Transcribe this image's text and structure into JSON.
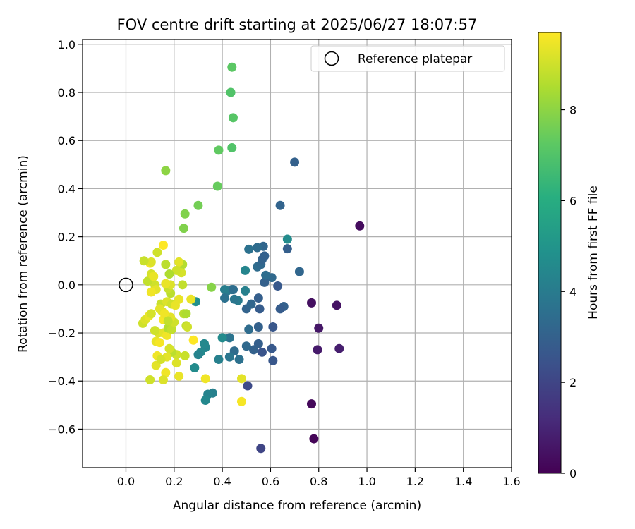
{
  "chart_data": {
    "type": "scatter",
    "title": "FOV centre drift starting at 2025/06/27 18:07:57",
    "xlabel": "Angular distance from reference (arcmin)",
    "ylabel": "Rotation from reference (arcmin)",
    "xlim": [
      -0.18,
      1.6
    ],
    "ylim": [
      -0.76,
      1.02
    ],
    "xticks": [
      0.0,
      0.2,
      0.4,
      0.6,
      0.8,
      1.0,
      1.2,
      1.4,
      1.6
    ],
    "xtick_labels": [
      "0.0",
      "0.2",
      "0.4",
      "0.6",
      "0.8",
      "1.0",
      "1.2",
      "1.4",
      "1.6"
    ],
    "yticks": [
      -0.6,
      -0.4,
      -0.2,
      0.0,
      0.2,
      0.4,
      0.6,
      0.8,
      1.0
    ],
    "ytick_labels": [
      "−0.6",
      "−0.4",
      "−0.2",
      "0.0",
      "0.2",
      "0.4",
      "0.6",
      "0.8",
      "1.0"
    ],
    "grid": true,
    "legend": {
      "position": "top-right",
      "entries": [
        "Reference platepar"
      ]
    },
    "reference_point": {
      "x": 0.0,
      "y": 0.0,
      "label": "Reference platepar"
    },
    "colorbar": {
      "label": "Hours from first FF file",
      "range": [
        0,
        9.7
      ],
      "ticks": [
        0,
        2,
        4,
        6,
        8
      ],
      "colormap": "viridis",
      "stops": [
        "#440154",
        "#472d7b",
        "#3b528b",
        "#2c728e",
        "#21918c",
        "#28ae80",
        "#5ec962",
        "#addc30",
        "#fde725"
      ]
    },
    "points": [
      {
        "x": 0.97,
        "y": 0.245,
        "c": 0.3
      },
      {
        "x": 0.77,
        "y": -0.075,
        "c": 0.4
      },
      {
        "x": 0.875,
        "y": -0.085,
        "c": 0.5
      },
      {
        "x": 0.8,
        "y": -0.18,
        "c": 0.6
      },
      {
        "x": 0.795,
        "y": -0.27,
        "c": 0.7
      },
      {
        "x": 0.885,
        "y": -0.265,
        "c": 0.8
      },
      {
        "x": 0.77,
        "y": -0.495,
        "c": 0.2
      },
      {
        "x": 0.78,
        "y": -0.64,
        "c": 0.1
      },
      {
        "x": 0.56,
        "y": -0.68,
        "c": 2.0
      },
      {
        "x": 0.505,
        "y": -0.42,
        "c": 2.2
      },
      {
        "x": 0.7,
        "y": 0.51,
        "c": 3.0
      },
      {
        "x": 0.64,
        "y": 0.33,
        "c": 3.1
      },
      {
        "x": 0.67,
        "y": 0.15,
        "c": 2.9
      },
      {
        "x": 0.67,
        "y": 0.19,
        "c": 4.6
      },
      {
        "x": 0.72,
        "y": 0.055,
        "c": 3.2
      },
      {
        "x": 0.655,
        "y": -0.09,
        "c": 3.0
      },
      {
        "x": 0.64,
        "y": -0.1,
        "c": 2.8
      },
      {
        "x": 0.63,
        "y": -0.005,
        "c": 2.7
      },
      {
        "x": 0.605,
        "y": 0.03,
        "c": 3.3
      },
      {
        "x": 0.61,
        "y": -0.175,
        "c": 2.6
      },
      {
        "x": 0.605,
        "y": -0.265,
        "c": 2.7
      },
      {
        "x": 0.61,
        "y": -0.315,
        "c": 2.6
      },
      {
        "x": 0.565,
        "y": -0.28,
        "c": 2.5
      },
      {
        "x": 0.55,
        "y": -0.245,
        "c": 2.9
      },
      {
        "x": 0.53,
        "y": -0.27,
        "c": 3.0
      },
      {
        "x": 0.5,
        "y": -0.255,
        "c": 3.3
      },
      {
        "x": 0.55,
        "y": -0.175,
        "c": 3.0
      },
      {
        "x": 0.51,
        "y": -0.185,
        "c": 3.4
      },
      {
        "x": 0.555,
        "y": -0.1,
        "c": 2.8
      },
      {
        "x": 0.55,
        "y": -0.055,
        "c": 2.9
      },
      {
        "x": 0.5,
        "y": -0.1,
        "c": 3.1
      },
      {
        "x": 0.52,
        "y": -0.08,
        "c": 3.2
      },
      {
        "x": 0.575,
        "y": 0.01,
        "c": 3.0
      },
      {
        "x": 0.58,
        "y": 0.04,
        "c": 3.5
      },
      {
        "x": 0.545,
        "y": 0.075,
        "c": 3.4
      },
      {
        "x": 0.56,
        "y": 0.085,
        "c": 3.3
      },
      {
        "x": 0.565,
        "y": 0.105,
        "c": 3.1
      },
      {
        "x": 0.575,
        "y": 0.12,
        "c": 3.0
      },
      {
        "x": 0.57,
        "y": 0.16,
        "c": 3.2
      },
      {
        "x": 0.545,
        "y": 0.155,
        "c": 3.4
      },
      {
        "x": 0.51,
        "y": 0.148,
        "c": 3.6
      },
      {
        "x": 0.495,
        "y": 0.06,
        "c": 4.4
      },
      {
        "x": 0.495,
        "y": -0.025,
        "c": 4.2
      },
      {
        "x": 0.465,
        "y": -0.065,
        "c": 4.0
      },
      {
        "x": 0.45,
        "y": -0.06,
        "c": 3.8
      },
      {
        "x": 0.44,
        "y": -0.02,
        "c": 3.7
      },
      {
        "x": 0.42,
        "y": -0.025,
        "c": 3.9
      },
      {
        "x": 0.41,
        "y": -0.02,
        "c": 4.1
      },
      {
        "x": 0.41,
        "y": -0.055,
        "c": 3.6
      },
      {
        "x": 0.445,
        "y": -0.02,
        "c": 3.5
      },
      {
        "x": 0.47,
        "y": -0.31,
        "c": 3.6
      },
      {
        "x": 0.45,
        "y": -0.275,
        "c": 3.4
      },
      {
        "x": 0.43,
        "y": -0.3,
        "c": 3.8
      },
      {
        "x": 0.43,
        "y": -0.22,
        "c": 3.7
      },
      {
        "x": 0.4,
        "y": -0.22,
        "c": 4.6
      },
      {
        "x": 0.385,
        "y": -0.31,
        "c": 4.2
      },
      {
        "x": 0.33,
        "y": -0.26,
        "c": 4.4
      },
      {
        "x": 0.31,
        "y": -0.28,
        "c": 4.5
      },
      {
        "x": 0.3,
        "y": -0.29,
        "c": 4.3
      },
      {
        "x": 0.325,
        "y": -0.245,
        "c": 4.5
      },
      {
        "x": 0.285,
        "y": -0.345,
        "c": 4.6
      },
      {
        "x": 0.29,
        "y": -0.07,
        "c": 4.8
      },
      {
        "x": 0.36,
        "y": -0.45,
        "c": 4.2
      },
      {
        "x": 0.34,
        "y": -0.455,
        "c": 4.3
      },
      {
        "x": 0.33,
        "y": -0.48,
        "c": 4.5
      },
      {
        "x": 0.44,
        "y": 0.905,
        "c": 7.2
      },
      {
        "x": 0.435,
        "y": 0.8,
        "c": 7.0
      },
      {
        "x": 0.445,
        "y": 0.695,
        "c": 7.1
      },
      {
        "x": 0.44,
        "y": 0.57,
        "c": 7.0
      },
      {
        "x": 0.385,
        "y": 0.56,
        "c": 7.3
      },
      {
        "x": 0.38,
        "y": 0.41,
        "c": 7.4
      },
      {
        "x": 0.165,
        "y": 0.475,
        "c": 8.0
      },
      {
        "x": 0.3,
        "y": 0.33,
        "c": 7.6
      },
      {
        "x": 0.245,
        "y": 0.295,
        "c": 7.8
      },
      {
        "x": 0.24,
        "y": 0.235,
        "c": 7.8
      },
      {
        "x": 0.355,
        "y": -0.01,
        "c": 7.9
      },
      {
        "x": 0.48,
        "y": -0.485,
        "c": 9.6
      },
      {
        "x": 0.48,
        "y": -0.39,
        "c": 9.3
      },
      {
        "x": 0.33,
        "y": -0.39,
        "c": 9.5
      },
      {
        "x": 0.28,
        "y": -0.23,
        "c": 9.7
      },
      {
        "x": 0.27,
        "y": -0.06,
        "c": 9.4
      },
      {
        "x": 0.25,
        "y": -0.17,
        "c": 8.8
      },
      {
        "x": 0.255,
        "y": -0.175,
        "c": 9.0
      },
      {
        "x": 0.24,
        "y": -0.12,
        "c": 8.7
      },
      {
        "x": 0.25,
        "y": -0.12,
        "c": 8.5
      },
      {
        "x": 0.235,
        "y": 0.085,
        "c": 8.6
      },
      {
        "x": 0.23,
        "y": 0.05,
        "c": 9.1
      },
      {
        "x": 0.22,
        "y": 0.095,
        "c": 9.3
      },
      {
        "x": 0.21,
        "y": 0.06,
        "c": 9.0
      },
      {
        "x": 0.22,
        "y": -0.06,
        "c": 9.4
      },
      {
        "x": 0.235,
        "y": 0.0,
        "c": 8.8
      },
      {
        "x": 0.245,
        "y": -0.295,
        "c": 8.9
      },
      {
        "x": 0.22,
        "y": -0.38,
        "c": 9.4
      },
      {
        "x": 0.21,
        "y": -0.325,
        "c": 9.2
      },
      {
        "x": 0.21,
        "y": -0.29,
        "c": 9.0
      },
      {
        "x": 0.19,
        "y": -0.28,
        "c": 8.7
      },
      {
        "x": 0.18,
        "y": -0.265,
        "c": 9.1
      },
      {
        "x": 0.17,
        "y": -0.3,
        "c": 9.3
      },
      {
        "x": 0.165,
        "y": -0.365,
        "c": 9.5
      },
      {
        "x": 0.155,
        "y": -0.395,
        "c": 9.2
      },
      {
        "x": 0.1,
        "y": -0.395,
        "c": 9.0
      },
      {
        "x": 0.125,
        "y": -0.335,
        "c": 9.3
      },
      {
        "x": 0.13,
        "y": -0.295,
        "c": 9.5
      },
      {
        "x": 0.145,
        "y": -0.31,
        "c": 9.1
      },
      {
        "x": 0.125,
        "y": -0.235,
        "c": 9.4
      },
      {
        "x": 0.14,
        "y": -0.24,
        "c": 9.6
      },
      {
        "x": 0.135,
        "y": -0.2,
        "c": 9.2
      },
      {
        "x": 0.12,
        "y": -0.19,
        "c": 9.0
      },
      {
        "x": 0.155,
        "y": -0.2,
        "c": 9.3
      },
      {
        "x": 0.17,
        "y": -0.21,
        "c": 9.5
      },
      {
        "x": 0.175,
        "y": -0.18,
        "c": 8.6
      },
      {
        "x": 0.19,
        "y": -0.185,
        "c": 8.8
      },
      {
        "x": 0.2,
        "y": -0.155,
        "c": 9.0
      },
      {
        "x": 0.185,
        "y": -0.135,
        "c": 9.3
      },
      {
        "x": 0.155,
        "y": -0.145,
        "c": 9.6
      },
      {
        "x": 0.15,
        "y": -0.11,
        "c": 9.1
      },
      {
        "x": 0.145,
        "y": -0.08,
        "c": 8.9
      },
      {
        "x": 0.17,
        "y": -0.07,
        "c": 9.2
      },
      {
        "x": 0.19,
        "y": -0.08,
        "c": 9.0
      },
      {
        "x": 0.205,
        "y": -0.085,
        "c": 9.4
      },
      {
        "x": 0.185,
        "y": -0.035,
        "c": 8.7
      },
      {
        "x": 0.175,
        "y": -0.015,
        "c": 8.9
      },
      {
        "x": 0.185,
        "y": 0.0,
        "c": 9.2
      },
      {
        "x": 0.165,
        "y": 0.005,
        "c": 9.4
      },
      {
        "x": 0.12,
        "y": 0.0,
        "c": 9.0
      },
      {
        "x": 0.125,
        "y": -0.02,
        "c": 9.3
      },
      {
        "x": 0.105,
        "y": -0.03,
        "c": 9.5
      },
      {
        "x": 0.09,
        "y": 0.015,
        "c": 8.8
      },
      {
        "x": 0.105,
        "y": 0.045,
        "c": 9.1
      },
      {
        "x": 0.115,
        "y": 0.035,
        "c": 9.4
      },
      {
        "x": 0.1,
        "y": 0.09,
        "c": 9.6
      },
      {
        "x": 0.105,
        "y": 0.095,
        "c": 9.2
      },
      {
        "x": 0.075,
        "y": 0.1,
        "c": 8.9
      },
      {
        "x": 0.13,
        "y": 0.135,
        "c": 9.0
      },
      {
        "x": 0.155,
        "y": 0.165,
        "c": 9.7
      },
      {
        "x": 0.165,
        "y": 0.085,
        "c": 8.7
      },
      {
        "x": 0.18,
        "y": 0.045,
        "c": 8.5
      },
      {
        "x": 0.07,
        "y": -0.16,
        "c": 9.0
      },
      {
        "x": 0.08,
        "y": -0.145,
        "c": 9.2
      },
      {
        "x": 0.095,
        "y": -0.13,
        "c": 9.4
      },
      {
        "x": 0.105,
        "y": -0.12,
        "c": 9.1
      },
      {
        "x": 0.14,
        "y": -0.1,
        "c": 9.3
      },
      {
        "x": 0.16,
        "y": -0.12,
        "c": 9.5
      },
      {
        "x": 0.175,
        "y": -0.15,
        "c": 8.8
      }
    ]
  }
}
